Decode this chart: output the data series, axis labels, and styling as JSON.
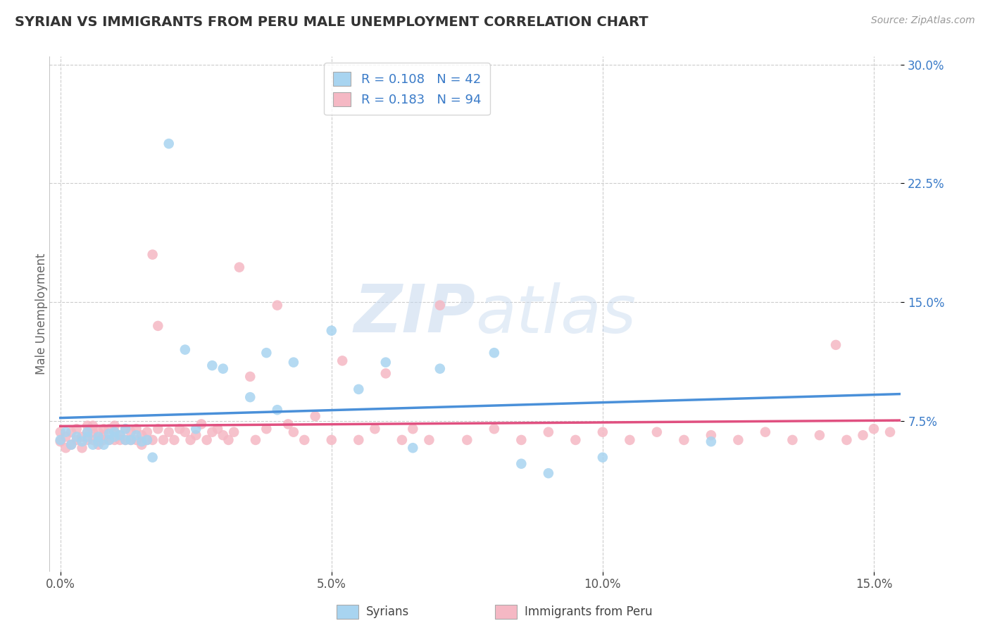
{
  "title": "SYRIAN VS IMMIGRANTS FROM PERU MALE UNEMPLOYMENT CORRELATION CHART",
  "source": "Source: ZipAtlas.com",
  "ylabel": "Male Unemployment",
  "xlim": [
    -0.002,
    0.155
  ],
  "ylim": [
    -0.02,
    0.305
  ],
  "xticks": [
    0.0,
    0.05,
    0.1,
    0.15
  ],
  "xtick_labels": [
    "0.0%",
    "5.0%",
    "10.0%",
    "15.0%"
  ],
  "yticks": [
    0.075,
    0.15,
    0.225,
    0.3
  ],
  "ytick_labels": [
    "7.5%",
    "15.0%",
    "22.5%",
    "30.0%"
  ],
  "syrian_color": "#a8d4f0",
  "peru_color": "#f5b8c4",
  "syrian_line_color": "#4a90d9",
  "peru_line_color": "#e05080",
  "r_syrian": 0.108,
  "n_syrian": 42,
  "r_peru": 0.183,
  "n_peru": 94,
  "background_color": "#ffffff",
  "grid_color": "#cccccc",
  "legend_text_color": "#3a7bc8",
  "watermark_color": "#dce8f5",
  "syrian_x": [
    0.0,
    0.001,
    0.002,
    0.003,
    0.004,
    0.005,
    0.005,
    0.006,
    0.007,
    0.007,
    0.008,
    0.009,
    0.009,
    0.01,
    0.01,
    0.011,
    0.012,
    0.012,
    0.013,
    0.014,
    0.015,
    0.016,
    0.017,
    0.02,
    0.023,
    0.025,
    0.028,
    0.03,
    0.035,
    0.038,
    0.04,
    0.043,
    0.05,
    0.055,
    0.06,
    0.065,
    0.07,
    0.08,
    0.085,
    0.09,
    0.1,
    0.12
  ],
  "syrian_y": [
    0.063,
    0.068,
    0.06,
    0.065,
    0.062,
    0.065,
    0.068,
    0.06,
    0.062,
    0.065,
    0.06,
    0.063,
    0.067,
    0.065,
    0.068,
    0.066,
    0.063,
    0.07,
    0.063,
    0.066,
    0.062,
    0.063,
    0.052,
    0.25,
    0.12,
    0.07,
    0.11,
    0.108,
    0.09,
    0.118,
    0.082,
    0.112,
    0.132,
    0.095,
    0.112,
    0.058,
    0.108,
    0.118,
    0.048,
    0.042,
    0.052,
    0.062
  ],
  "peru_x": [
    0.0,
    0.0,
    0.001,
    0.001,
    0.002,
    0.002,
    0.003,
    0.003,
    0.004,
    0.004,
    0.005,
    0.005,
    0.005,
    0.006,
    0.006,
    0.006,
    0.007,
    0.007,
    0.007,
    0.008,
    0.008,
    0.008,
    0.009,
    0.009,
    0.01,
    0.01,
    0.01,
    0.011,
    0.011,
    0.012,
    0.012,
    0.013,
    0.013,
    0.014,
    0.014,
    0.015,
    0.015,
    0.016,
    0.016,
    0.017,
    0.017,
    0.018,
    0.018,
    0.019,
    0.02,
    0.021,
    0.022,
    0.023,
    0.024,
    0.025,
    0.026,
    0.027,
    0.028,
    0.029,
    0.03,
    0.031,
    0.032,
    0.033,
    0.035,
    0.036,
    0.038,
    0.04,
    0.042,
    0.043,
    0.045,
    0.047,
    0.05,
    0.052,
    0.055,
    0.058,
    0.06,
    0.063,
    0.065,
    0.068,
    0.07,
    0.075,
    0.08,
    0.085,
    0.09,
    0.095,
    0.1,
    0.105,
    0.11,
    0.115,
    0.12,
    0.125,
    0.13,
    0.135,
    0.14,
    0.143,
    0.145,
    0.148,
    0.15,
    0.153
  ],
  "peru_y": [
    0.062,
    0.068,
    0.058,
    0.065,
    0.06,
    0.068,
    0.063,
    0.07,
    0.058,
    0.065,
    0.063,
    0.068,
    0.072,
    0.063,
    0.068,
    0.072,
    0.06,
    0.063,
    0.068,
    0.063,
    0.066,
    0.07,
    0.063,
    0.07,
    0.063,
    0.068,
    0.072,
    0.063,
    0.066,
    0.063,
    0.07,
    0.063,
    0.068,
    0.063,
    0.07,
    0.06,
    0.066,
    0.063,
    0.068,
    0.063,
    0.18,
    0.07,
    0.135,
    0.063,
    0.068,
    0.063,
    0.07,
    0.068,
    0.063,
    0.066,
    0.073,
    0.063,
    0.068,
    0.07,
    0.066,
    0.063,
    0.068,
    0.172,
    0.103,
    0.063,
    0.07,
    0.148,
    0.073,
    0.068,
    0.063,
    0.078,
    0.063,
    0.113,
    0.063,
    0.07,
    0.105,
    0.063,
    0.07,
    0.063,
    0.148,
    0.063,
    0.07,
    0.063,
    0.068,
    0.063,
    0.068,
    0.063,
    0.068,
    0.063,
    0.066,
    0.063,
    0.068,
    0.063,
    0.066,
    0.123,
    0.063,
    0.066,
    0.07,
    0.068
  ]
}
